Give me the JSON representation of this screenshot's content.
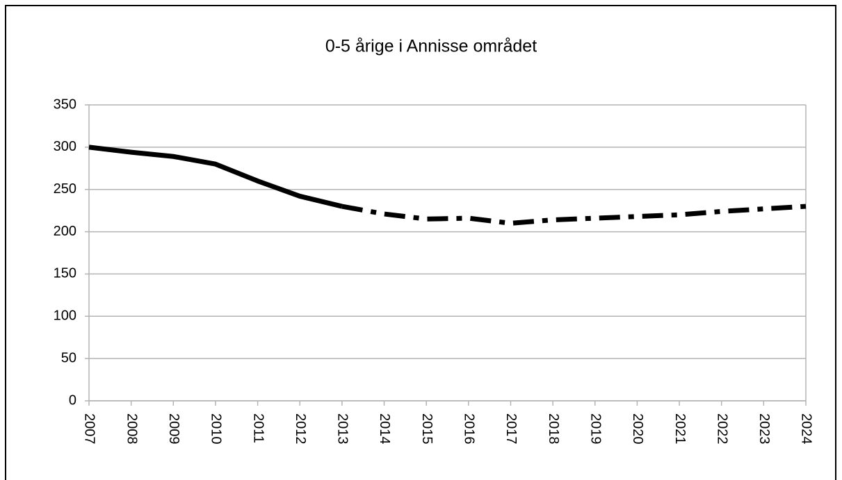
{
  "chart_data": {
    "type": "line",
    "title": "0-5 årige i Annisse området",
    "categories": [
      "2007",
      "2008",
      "2009",
      "2010",
      "2011",
      "2012",
      "2013",
      "2014",
      "2015",
      "2016",
      "2017",
      "2018",
      "2019",
      "2020",
      "2021",
      "2022",
      "2023",
      "2024"
    ],
    "series": [
      {
        "color": "#000000",
        "dash": "solid",
        "values": [
          300,
          294,
          289,
          280,
          260,
          242,
          230,
          null,
          null,
          null,
          null,
          null,
          null,
          null,
          null,
          null,
          null,
          null
        ]
      },
      {
        "color": "#000000",
        "dash": "dashdot",
        "values": [
          null,
          null,
          null,
          null,
          null,
          null,
          230,
          221,
          215,
          216,
          210,
          214,
          216,
          218,
          220,
          224,
          227,
          230
        ]
      }
    ],
    "ylim": [
      0,
      350
    ],
    "yticks": [
      0,
      50,
      100,
      150,
      200,
      250,
      300,
      350
    ],
    "grid": true
  }
}
